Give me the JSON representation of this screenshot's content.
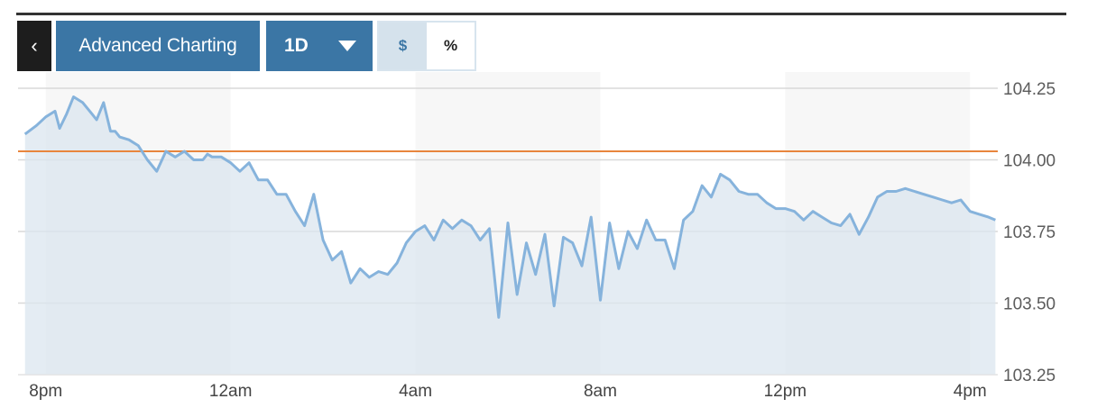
{
  "toolbar": {
    "back_label": "‹",
    "advanced_label": "Advanced Charting",
    "period_label": "1D",
    "currency_label": "$",
    "percent_label": "%"
  },
  "colors": {
    "accent": "#3b76a5",
    "line": "#86b3dc",
    "area": "#dbe6ef",
    "reference_line": "#e8853d"
  },
  "chart_data": {
    "type": "area",
    "title": "",
    "xlabel": "",
    "ylabel": "",
    "ylim": [
      103.25,
      104.25
    ],
    "xlim": [
      -0.6,
      20.6
    ],
    "y_ticks": [
      104.25,
      104.0,
      103.75,
      103.5,
      103.25
    ],
    "y_tick_labels": [
      "104.25",
      "104.00",
      "103.75",
      "103.50",
      "103.25"
    ],
    "x_ticks": [
      0,
      4,
      8,
      12,
      16,
      20
    ],
    "x_tick_labels": [
      "8pm",
      "12am",
      "4am",
      "8am",
      "12pm",
      "4pm"
    ],
    "x_unit": "hours after 8pm",
    "grid": true,
    "reference_line": 104.03,
    "series": [
      {
        "x": [
          -0.45,
          -0.2,
          0.0,
          0.2,
          0.3,
          0.45,
          0.6,
          0.8,
          1.0,
          1.1,
          1.25,
          1.4,
          1.5,
          1.6,
          1.8,
          2.0,
          2.2,
          2.4,
          2.6,
          2.8,
          3.0,
          3.2,
          3.4,
          3.5,
          3.6,
          3.8,
          4.0,
          4.2,
          4.4,
          4.6,
          4.8,
          5.0,
          5.2,
          5.4,
          5.6,
          5.8,
          6.0,
          6.2,
          6.4,
          6.6,
          6.8,
          7.0,
          7.2,
          7.4,
          7.6,
          7.8,
          8.0,
          8.2,
          8.4,
          8.6,
          8.8,
          9.0,
          9.2,
          9.4,
          9.6,
          9.8,
          10.0,
          10.2,
          10.4,
          10.6,
          10.8,
          11.0,
          11.2,
          11.4,
          11.6,
          11.8,
          12.0,
          12.2,
          12.4,
          12.6,
          12.8,
          13.0,
          13.2,
          13.4,
          13.6,
          13.8,
          14.0,
          14.2,
          14.4,
          14.6,
          14.8,
          15.0,
          15.2,
          15.4,
          15.6,
          15.8,
          16.0,
          16.2,
          16.4,
          16.6,
          16.8,
          17.0,
          17.2,
          17.4,
          17.6,
          17.8,
          18.0,
          18.2,
          18.4,
          18.6,
          18.8,
          19.0,
          19.2,
          19.4,
          19.6,
          19.8,
          20.0,
          20.2,
          20.4,
          20.55
        ],
        "values": [
          104.09,
          104.12,
          104.15,
          104.17,
          104.11,
          104.16,
          104.22,
          104.2,
          104.16,
          104.14,
          104.2,
          104.1,
          104.1,
          104.08,
          104.07,
          104.05,
          104.0,
          103.96,
          104.03,
          104.01,
          104.03,
          104.0,
          104.0,
          104.02,
          104.01,
          104.01,
          103.99,
          103.96,
          103.99,
          103.93,
          103.93,
          103.88,
          103.88,
          103.82,
          103.77,
          103.88,
          103.72,
          103.65,
          103.68,
          103.57,
          103.62,
          103.59,
          103.61,
          103.6,
          103.64,
          103.71,
          103.75,
          103.77,
          103.72,
          103.79,
          103.76,
          103.79,
          103.77,
          103.72,
          103.76,
          103.45,
          103.78,
          103.53,
          103.71,
          103.6,
          103.74,
          103.49,
          103.73,
          103.71,
          103.63,
          103.8,
          103.51,
          103.78,
          103.62,
          103.75,
          103.69,
          103.79,
          103.72,
          103.72,
          103.62,
          103.79,
          103.82,
          103.91,
          103.87,
          103.95,
          103.93,
          103.89,
          103.88,
          103.88,
          103.85,
          103.83,
          103.83,
          103.82,
          103.79,
          103.82,
          103.8,
          103.78,
          103.77,
          103.81,
          103.74,
          103.8,
          103.87,
          103.89,
          103.89,
          103.9,
          103.89,
          103.88,
          103.87,
          103.86,
          103.85,
          103.86,
          103.82,
          103.81,
          103.8,
          103.79
        ]
      }
    ]
  }
}
